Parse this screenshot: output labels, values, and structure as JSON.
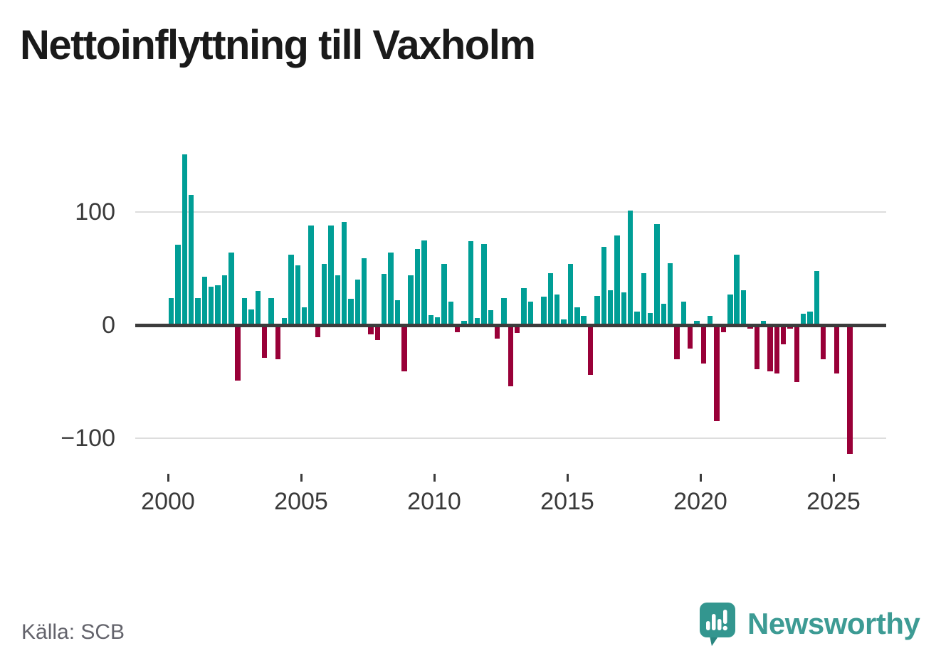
{
  "title": "Nettoinflyttning till Vaxholm",
  "source": "Källa: SCB",
  "brand": {
    "name": "Newsworthy"
  },
  "colors": {
    "positive": "#009e96",
    "negative": "#990038",
    "grid": "#dddddd",
    "zero_line": "#3c3c3c",
    "axis_text": "#3a3a3a",
    "title": "#1a1a1a",
    "source_text": "#63636b",
    "brand_teal": "#33968f",
    "brand_text": "#3d9b94"
  },
  "chart_data": {
    "type": "bar",
    "title": "Nettoinflyttning till Vaxholm",
    "xlabel": "",
    "ylabel": "",
    "x_tick_labels": [
      "2000",
      "2005",
      "2010",
      "2015",
      "2020",
      "2025"
    ],
    "x_tick_years": [
      2000,
      2005,
      2010,
      2015,
      2020,
      2025
    ],
    "y_ticks": [
      100,
      0,
      -100
    ],
    "y_tick_labels": [
      "100",
      "0",
      "−100"
    ],
    "ylim": [
      -120,
      160
    ],
    "grid": "horizontal-only",
    "legend": "none",
    "quarters": [
      "2000 Q1",
      "2000 Q2",
      "2000 Q3",
      "2000 Q4",
      "2001 Q1",
      "2001 Q2",
      "2001 Q3",
      "2001 Q4",
      "2002 Q1",
      "2002 Q2",
      "2002 Q3",
      "2002 Q4",
      "2003 Q1",
      "2003 Q2",
      "2003 Q3",
      "2003 Q4",
      "2004 Q1",
      "2004 Q2",
      "2004 Q3",
      "2004 Q4",
      "2005 Q1",
      "2005 Q2",
      "2005 Q3",
      "2005 Q4",
      "2006 Q1",
      "2006 Q2",
      "2006 Q3",
      "2006 Q4",
      "2007 Q1",
      "2007 Q2",
      "2007 Q3",
      "2007 Q4",
      "2008 Q1",
      "2008 Q2",
      "2008 Q3",
      "2008 Q4",
      "2009 Q1",
      "2009 Q2",
      "2009 Q3",
      "2009 Q4",
      "2010 Q1",
      "2010 Q2",
      "2010 Q3",
      "2010 Q4",
      "2011 Q1",
      "2011 Q2",
      "2011 Q3",
      "2011 Q4",
      "2012 Q1",
      "2012 Q2",
      "2012 Q3",
      "2012 Q4",
      "2013 Q1",
      "2013 Q2",
      "2013 Q3",
      "2013 Q4",
      "2014 Q1",
      "2014 Q2",
      "2014 Q3",
      "2014 Q4",
      "2015 Q1",
      "2015 Q2",
      "2015 Q3",
      "2015 Q4",
      "2016 Q1",
      "2016 Q2",
      "2016 Q3",
      "2016 Q4",
      "2017 Q1",
      "2017 Q2",
      "2017 Q3",
      "2017 Q4",
      "2018 Q1",
      "2018 Q2",
      "2018 Q3",
      "2018 Q4",
      "2019 Q1",
      "2019 Q2",
      "2019 Q3",
      "2019 Q4",
      "2020 Q1",
      "2020 Q2",
      "2020 Q3",
      "2020 Q4",
      "2021 Q1",
      "2021 Q2",
      "2021 Q3",
      "2021 Q4",
      "2022 Q1",
      "2022 Q2",
      "2022 Q3",
      "2022 Q4",
      "2023 Q1",
      "2023 Q2",
      "2023 Q3",
      "2023 Q4",
      "2024 Q1",
      "2024 Q2",
      "2024 Q3",
      "2024 Q4",
      "2025 Q1",
      "2025 Q2",
      "2025 Q3"
    ],
    "values": [
      24,
      71,
      151,
      115,
      24,
      43,
      34,
      35,
      44,
      64,
      -49,
      24,
      14,
      30,
      -29,
      24,
      -30,
      6,
      62,
      53,
      16,
      88,
      -11,
      54,
      88,
      44,
      91,
      23,
      40,
      59,
      -8,
      -13,
      45,
      64,
      22,
      -41,
      44,
      67,
      75,
      9,
      7,
      54,
      21,
      -6,
      4,
      74,
      6,
      72,
      13,
      -12,
      24,
      -54,
      -7,
      33,
      21,
      0,
      25,
      46,
      27,
      5,
      54,
      16,
      8,
      -44,
      26,
      69,
      31,
      79,
      29,
      101,
      12,
      46,
      11,
      89,
      19,
      55,
      -30,
      21,
      -21,
      4,
      -34,
      8,
      -85,
      -6,
      27,
      62,
      31,
      -3,
      -39,
      4,
      -41,
      -43,
      -17,
      -3,
      -50,
      10,
      12,
      48,
      -30,
      0,
      -43,
      0,
      -114
    ]
  }
}
